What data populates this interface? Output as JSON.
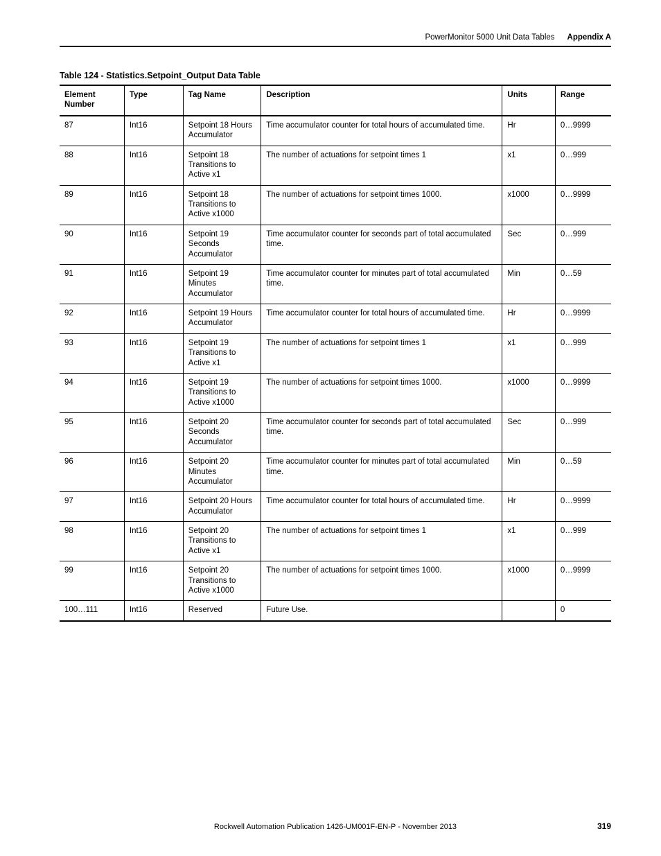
{
  "header": {
    "chapter": "PowerMonitor 5000 Unit Data Tables",
    "appendix": "Appendix A"
  },
  "table": {
    "caption": "Table 124 - Statistics.Setpoint_Output Data Table",
    "columns": [
      "Element Number",
      "Type",
      "Tag Name",
      "Description",
      "Units",
      "Range"
    ],
    "rows": [
      {
        "elem": "87",
        "type": "Int16",
        "tag": "Setpoint 18 Hours Accumulator",
        "desc": "Time accumulator counter for total hours of accumulated time.",
        "units": "Hr",
        "range": "0…9999"
      },
      {
        "elem": "88",
        "type": "Int16",
        "tag": "Setpoint 18 Transitions to Active x1",
        "desc": "The number of actuations for setpoint times 1",
        "units": "x1",
        "range": "0…999"
      },
      {
        "elem": "89",
        "type": "Int16",
        "tag": "Setpoint 18 Transitions to Active x1000",
        "desc": "The number of actuations for setpoint times 1000.",
        "units": "x1000",
        "range": "0…9999"
      },
      {
        "elem": "90",
        "type": "Int16",
        "tag": "Setpoint 19 Seconds Accumulator",
        "desc": "Time accumulator counter for seconds part of total accumulated time.",
        "units": "Sec",
        "range": "0…999"
      },
      {
        "elem": "91",
        "type": "Int16",
        "tag": "Setpoint 19 Minutes Accumulator",
        "desc": "Time accumulator counter for minutes part of total accumulated time.",
        "units": "Min",
        "range": "0…59"
      },
      {
        "elem": "92",
        "type": "Int16",
        "tag": "Setpoint 19 Hours Accumulator",
        "desc": "Time accumulator counter for total hours of accumulated time.",
        "units": "Hr",
        "range": "0…9999"
      },
      {
        "elem": "93",
        "type": "Int16",
        "tag": "Setpoint 19 Transitions to Active x1",
        "desc": "The number of actuations for setpoint times 1",
        "units": "x1",
        "range": "0…999"
      },
      {
        "elem": "94",
        "type": "Int16",
        "tag": "Setpoint 19 Transitions to Active x1000",
        "desc": "The number of actuations for setpoint times 1000.",
        "units": "x1000",
        "range": "0…9999"
      },
      {
        "elem": "95",
        "type": "Int16",
        "tag": "Setpoint 20 Seconds Accumulator",
        "desc": "Time accumulator counter for seconds part of total accumulated time.",
        "units": "Sec",
        "range": "0…999"
      },
      {
        "elem": "96",
        "type": "Int16",
        "tag": "Setpoint 20 Minutes Accumulator",
        "desc": "Time accumulator counter for minutes part of total accumulated time.",
        "units": "Min",
        "range": "0…59"
      },
      {
        "elem": "97",
        "type": "Int16",
        "tag": "Setpoint 20 Hours Accumulator",
        "desc": "Time accumulator counter for total hours of accumulated time.",
        "units": "Hr",
        "range": "0…9999"
      },
      {
        "elem": "98",
        "type": "Int16",
        "tag": "Setpoint 20 Transitions to Active x1",
        "desc": "The number of actuations for setpoint times 1",
        "units": "x1",
        "range": "0…999"
      },
      {
        "elem": "99",
        "type": "Int16",
        "tag": "Setpoint 20 Transitions to Active x1000",
        "desc": "The number of actuations for setpoint times 1000.",
        "units": "x1000",
        "range": "0…9999"
      },
      {
        "elem": "100…111",
        "type": "Int16",
        "tag": "Reserved",
        "desc": "Future Use.",
        "units": "",
        "range": "0"
      }
    ]
  },
  "footer": {
    "publication": "Rockwell Automation Publication 1426-UM001F-EN-P - November 2013",
    "page": "319"
  }
}
